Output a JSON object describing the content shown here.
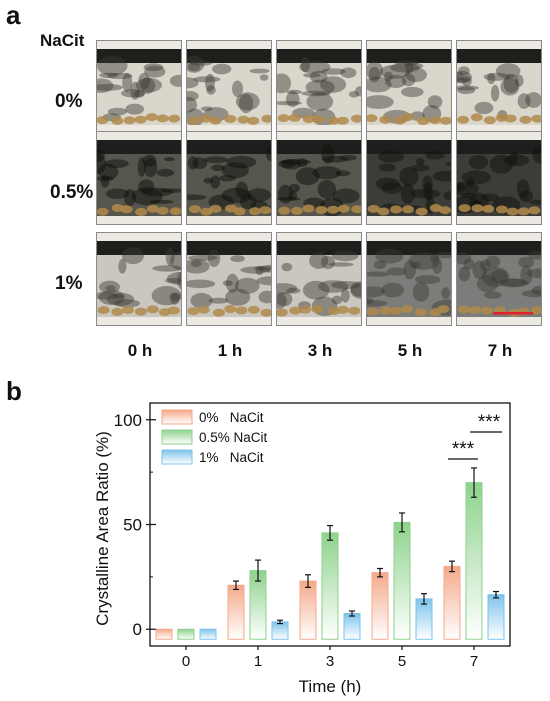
{
  "panel_a": {
    "letter": "a",
    "header_label": "NaCit",
    "rows": [
      {
        "label": "0%",
        "style": "pale"
      },
      {
        "label": "0.5%",
        "style": "dark"
      },
      {
        "label": "1%",
        "style": "textured"
      }
    ],
    "columns": [
      "0 h",
      "1 h",
      "3 h",
      "5 h",
      "7 h"
    ],
    "scale_bar_color": "#e0202a"
  },
  "panel_b": {
    "letter": "b"
  },
  "chart_data": {
    "type": "bar",
    "xlabel": "Time (h)",
    "ylabel": "Crystalline Area Ratio (%)",
    "categories": [
      "0",
      "1",
      "3",
      "5",
      "7"
    ],
    "ylim": [
      -8,
      108
    ],
    "yticks": [
      0,
      50,
      100
    ],
    "legend_position": "top-left",
    "series": [
      {
        "name": "0%   NaCit",
        "color": "#f4a98a",
        "values": [
          0,
          21,
          23,
          27,
          30
        ],
        "errors": [
          0,
          2,
          3,
          2,
          2.5
        ]
      },
      {
        "name": "0.5% NaCit",
        "color": "#8ed28c",
        "values": [
          0,
          28,
          46,
          51,
          70
        ],
        "errors": [
          0,
          5,
          3.5,
          4.5,
          7
        ]
      },
      {
        "name": "1%   NaCit",
        "color": "#7cc3ea",
        "values": [
          0,
          3.5,
          7.5,
          14.5,
          16.5
        ],
        "errors": [
          0,
          0.8,
          1.2,
          2.5,
          1.5
        ]
      }
    ],
    "annotations": [
      {
        "text": "***",
        "between": [
          "0%   NaCit",
          "0.5% NaCit"
        ],
        "category": "7"
      },
      {
        "text": "***",
        "between": [
          "0.5% NaCit",
          "1%   NaCit"
        ],
        "category": "7"
      }
    ]
  }
}
